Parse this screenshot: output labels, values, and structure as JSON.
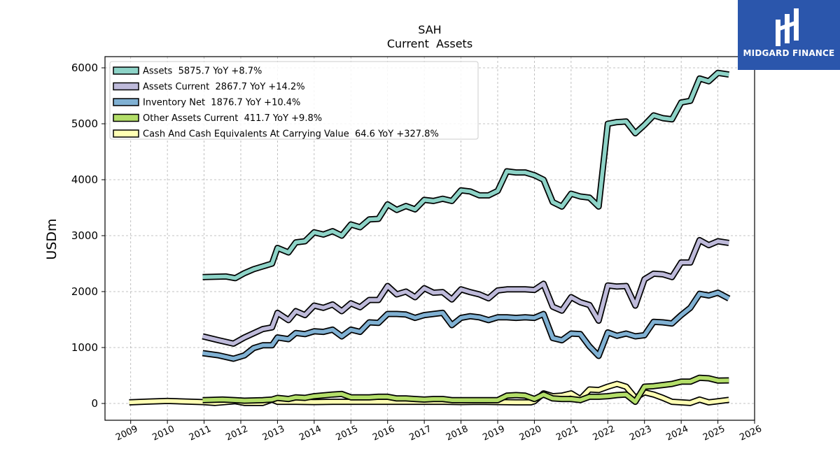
{
  "brand": {
    "name": "MIDGARD FINANCE",
    "color": "#2b56ac"
  },
  "chart_data": {
    "type": "line",
    "title": "SAH",
    "subtitle": "Current  Assets",
    "xlabel": "",
    "ylabel": "USDm",
    "xlim": [
      2008.3,
      2026.0
    ],
    "ylim": [
      -300,
      6200
    ],
    "grid": true,
    "legend_position": "top-left",
    "x_ticks": [
      "2009",
      "2010",
      "2011",
      "2012",
      "2013",
      "2014",
      "2015",
      "2016",
      "2017",
      "2018",
      "2019",
      "2020",
      "2021",
      "2022",
      "2023",
      "2024",
      "2025",
      "2026"
    ],
    "y_ticks": [
      "0",
      "1000",
      "2000",
      "3000",
      "4000",
      "5000",
      "6000"
    ],
    "series": [
      {
        "name": "Assets  5875.7 YoY +8.7%",
        "color": "#8dd3c7",
        "points": [
          [
            2010.96,
            2260
          ],
          [
            2011.6,
            2270
          ],
          [
            2011.85,
            2240
          ],
          [
            2012.1,
            2330
          ],
          [
            2012.35,
            2400
          ],
          [
            2012.6,
            2450
          ],
          [
            2012.85,
            2500
          ],
          [
            2013.0,
            2780
          ],
          [
            2013.3,
            2700
          ],
          [
            2013.5,
            2880
          ],
          [
            2013.75,
            2900
          ],
          [
            2014.0,
            3060
          ],
          [
            2014.25,
            3020
          ],
          [
            2014.5,
            3080
          ],
          [
            2014.75,
            3000
          ],
          [
            2015.0,
            3200
          ],
          [
            2015.25,
            3150
          ],
          [
            2015.5,
            3290
          ],
          [
            2015.75,
            3300
          ],
          [
            2016.0,
            3560
          ],
          [
            2016.25,
            3460
          ],
          [
            2016.5,
            3530
          ],
          [
            2016.75,
            3470
          ],
          [
            2017.0,
            3640
          ],
          [
            2017.25,
            3620
          ],
          [
            2017.5,
            3660
          ],
          [
            2017.75,
            3620
          ],
          [
            2018.0,
            3810
          ],
          [
            2018.25,
            3790
          ],
          [
            2018.5,
            3720
          ],
          [
            2018.75,
            3720
          ],
          [
            2019.0,
            3800
          ],
          [
            2019.25,
            4150
          ],
          [
            2019.5,
            4130
          ],
          [
            2019.75,
            4130
          ],
          [
            2020.0,
            4080
          ],
          [
            2020.25,
            4000
          ],
          [
            2020.5,
            3600
          ],
          [
            2020.75,
            3520
          ],
          [
            2021.0,
            3750
          ],
          [
            2021.25,
            3700
          ],
          [
            2021.5,
            3680
          ],
          [
            2021.75,
            3520
          ],
          [
            2022.0,
            5000
          ],
          [
            2022.25,
            5030
          ],
          [
            2022.5,
            5040
          ],
          [
            2022.75,
            4830
          ],
          [
            2023.0,
            4980
          ],
          [
            2023.25,
            5150
          ],
          [
            2023.5,
            5100
          ],
          [
            2023.75,
            5080
          ],
          [
            2024.0,
            5380
          ],
          [
            2024.25,
            5410
          ],
          [
            2024.5,
            5810
          ],
          [
            2024.75,
            5760
          ],
          [
            2025.0,
            5910
          ],
          [
            2025.3,
            5880
          ]
        ]
      },
      {
        "name": "Assets Current  2867.7 YoY +14.2%",
        "color": "#bebada",
        "points": [
          [
            2010.96,
            1200
          ],
          [
            2011.4,
            1130
          ],
          [
            2011.8,
            1070
          ],
          [
            2012.1,
            1180
          ],
          [
            2012.4,
            1270
          ],
          [
            2012.6,
            1330
          ],
          [
            2012.85,
            1360
          ],
          [
            2013.0,
            1620
          ],
          [
            2013.3,
            1490
          ],
          [
            2013.5,
            1650
          ],
          [
            2013.75,
            1580
          ],
          [
            2014.0,
            1750
          ],
          [
            2014.25,
            1710
          ],
          [
            2014.5,
            1770
          ],
          [
            2014.75,
            1650
          ],
          [
            2015.0,
            1790
          ],
          [
            2015.25,
            1720
          ],
          [
            2015.5,
            1850
          ],
          [
            2015.75,
            1850
          ],
          [
            2016.0,
            2100
          ],
          [
            2016.25,
            1950
          ],
          [
            2016.5,
            2000
          ],
          [
            2016.75,
            1900
          ],
          [
            2017.0,
            2060
          ],
          [
            2017.25,
            1980
          ],
          [
            2017.5,
            1990
          ],
          [
            2017.75,
            1860
          ],
          [
            2018.0,
            2040
          ],
          [
            2018.25,
            1990
          ],
          [
            2018.5,
            1950
          ],
          [
            2018.75,
            1880
          ],
          [
            2019.0,
            2020
          ],
          [
            2019.25,
            2040
          ],
          [
            2019.5,
            2040
          ],
          [
            2019.75,
            2040
          ],
          [
            2020.0,
            2030
          ],
          [
            2020.25,
            2140
          ],
          [
            2020.5,
            1730
          ],
          [
            2020.75,
            1660
          ],
          [
            2021.0,
            1900
          ],
          [
            2021.25,
            1810
          ],
          [
            2021.5,
            1760
          ],
          [
            2021.75,
            1480
          ],
          [
            2022.0,
            2110
          ],
          [
            2022.25,
            2090
          ],
          [
            2022.5,
            2100
          ],
          [
            2022.75,
            1750
          ],
          [
            2023.0,
            2220
          ],
          [
            2023.25,
            2320
          ],
          [
            2023.5,
            2310
          ],
          [
            2023.75,
            2260
          ],
          [
            2024.0,
            2520
          ],
          [
            2024.25,
            2520
          ],
          [
            2024.5,
            2920
          ],
          [
            2024.75,
            2830
          ],
          [
            2025.0,
            2900
          ],
          [
            2025.3,
            2870
          ]
        ]
      },
      {
        "name": "Inventory Net  1876.7 YoY +10.4%",
        "color": "#80b1d3",
        "points": [
          [
            2010.96,
            900
          ],
          [
            2011.4,
            860
          ],
          [
            2011.8,
            800
          ],
          [
            2012.1,
            860
          ],
          [
            2012.35,
            990
          ],
          [
            2012.6,
            1040
          ],
          [
            2012.85,
            1040
          ],
          [
            2013.0,
            1180
          ],
          [
            2013.3,
            1150
          ],
          [
            2013.5,
            1260
          ],
          [
            2013.75,
            1240
          ],
          [
            2014.0,
            1290
          ],
          [
            2014.25,
            1280
          ],
          [
            2014.5,
            1320
          ],
          [
            2014.75,
            1200
          ],
          [
            2015.0,
            1320
          ],
          [
            2015.25,
            1280
          ],
          [
            2015.5,
            1450
          ],
          [
            2015.75,
            1440
          ],
          [
            2016.0,
            1600
          ],
          [
            2016.25,
            1600
          ],
          [
            2016.5,
            1590
          ],
          [
            2016.75,
            1530
          ],
          [
            2017.0,
            1580
          ],
          [
            2017.25,
            1600
          ],
          [
            2017.5,
            1620
          ],
          [
            2017.75,
            1400
          ],
          [
            2018.0,
            1530
          ],
          [
            2018.25,
            1560
          ],
          [
            2018.5,
            1540
          ],
          [
            2018.75,
            1490
          ],
          [
            2019.0,
            1540
          ],
          [
            2019.25,
            1540
          ],
          [
            2019.5,
            1530
          ],
          [
            2019.75,
            1540
          ],
          [
            2020.0,
            1530
          ],
          [
            2020.25,
            1600
          ],
          [
            2020.5,
            1170
          ],
          [
            2020.75,
            1130
          ],
          [
            2021.0,
            1250
          ],
          [
            2021.25,
            1240
          ],
          [
            2021.5,
            1020
          ],
          [
            2021.75,
            850
          ],
          [
            2022.0,
            1270
          ],
          [
            2022.25,
            1210
          ],
          [
            2022.5,
            1250
          ],
          [
            2022.75,
            1200
          ],
          [
            2023.0,
            1220
          ],
          [
            2023.25,
            1460
          ],
          [
            2023.5,
            1450
          ],
          [
            2023.75,
            1430
          ],
          [
            2024.0,
            1580
          ],
          [
            2024.25,
            1710
          ],
          [
            2024.5,
            1960
          ],
          [
            2024.75,
            1930
          ],
          [
            2025.0,
            1980
          ],
          [
            2025.3,
            1876
          ]
        ]
      },
      {
        "name": "Other Assets Current  411.7 YoY +9.8%",
        "color": "#b3de69",
        "points": [
          [
            2010.96,
            60
          ],
          [
            2011.5,
            70
          ],
          [
            2011.85,
            60
          ],
          [
            2012.1,
            50
          ],
          [
            2012.6,
            60
          ],
          [
            2012.85,
            70
          ],
          [
            2013.0,
            100
          ],
          [
            2013.3,
            80
          ],
          [
            2013.5,
            110
          ],
          [
            2013.75,
            100
          ],
          [
            2014.0,
            130
          ],
          [
            2014.5,
            160
          ],
          [
            2014.75,
            170
          ],
          [
            2015.0,
            110
          ],
          [
            2015.5,
            110
          ],
          [
            2015.75,
            120
          ],
          [
            2016.0,
            120
          ],
          [
            2016.25,
            90
          ],
          [
            2016.5,
            90
          ],
          [
            2016.75,
            80
          ],
          [
            2017.0,
            70
          ],
          [
            2017.25,
            80
          ],
          [
            2017.5,
            80
          ],
          [
            2017.75,
            60
          ],
          [
            2018.0,
            60
          ],
          [
            2018.5,
            60
          ],
          [
            2018.75,
            60
          ],
          [
            2019.0,
            60
          ],
          [
            2019.25,
            140
          ],
          [
            2019.5,
            150
          ],
          [
            2019.75,
            140
          ],
          [
            2020.0,
            80
          ],
          [
            2020.25,
            160
          ],
          [
            2020.5,
            90
          ],
          [
            2020.75,
            80
          ],
          [
            2021.0,
            80
          ],
          [
            2021.25,
            60
          ],
          [
            2021.5,
            120
          ],
          [
            2021.75,
            120
          ],
          [
            2022.0,
            130
          ],
          [
            2022.25,
            150
          ],
          [
            2022.5,
            160
          ],
          [
            2022.75,
            30
          ],
          [
            2023.0,
            300
          ],
          [
            2023.25,
            310
          ],
          [
            2023.5,
            330
          ],
          [
            2023.75,
            350
          ],
          [
            2024.0,
            390
          ],
          [
            2024.25,
            390
          ],
          [
            2024.5,
            460
          ],
          [
            2024.75,
            450
          ],
          [
            2025.0,
            410
          ],
          [
            2025.3,
            412
          ]
        ]
      },
      {
        "name": "Cash And Cash Equivalents At Carrying Value  64.6 YoY +327.8%",
        "color": "#ffffb3",
        "points": [
          [
            2008.96,
            20
          ],
          [
            2009.5,
            35
          ],
          [
            2010.0,
            45
          ],
          [
            2010.5,
            35
          ],
          [
            2010.96,
            25
          ],
          [
            2011.3,
            10
          ],
          [
            2011.85,
            40
          ],
          [
            2012.1,
            10
          ],
          [
            2012.6,
            10
          ],
          [
            2012.85,
            70
          ],
          [
            2013.0,
            30
          ],
          [
            2013.5,
            30
          ],
          [
            2014.0,
            25
          ],
          [
            2014.5,
            30
          ],
          [
            2015.0,
            30
          ],
          [
            2015.5,
            30
          ],
          [
            2016.0,
            30
          ],
          [
            2016.5,
            30
          ],
          [
            2017.0,
            30
          ],
          [
            2017.5,
            30
          ],
          [
            2018.0,
            25
          ],
          [
            2018.5,
            30
          ],
          [
            2019.0,
            25
          ],
          [
            2019.5,
            20
          ],
          [
            2019.9,
            20
          ],
          [
            2020.0,
            40
          ],
          [
            2020.25,
            180
          ],
          [
            2020.5,
            130
          ],
          [
            2020.75,
            140
          ],
          [
            2021.0,
            180
          ],
          [
            2021.25,
            80
          ],
          [
            2021.5,
            250
          ],
          [
            2021.75,
            240
          ],
          [
            2022.0,
            300
          ],
          [
            2022.25,
            350
          ],
          [
            2022.5,
            300
          ],
          [
            2022.75,
            100
          ],
          [
            2023.0,
            200
          ],
          [
            2023.25,
            160
          ],
          [
            2023.5,
            100
          ],
          [
            2023.75,
            30
          ],
          [
            2024.0,
            20
          ],
          [
            2024.25,
            10
          ],
          [
            2024.5,
            70
          ],
          [
            2024.75,
            20
          ],
          [
            2025.0,
            40
          ],
          [
            2025.3,
            65
          ]
        ]
      }
    ]
  }
}
